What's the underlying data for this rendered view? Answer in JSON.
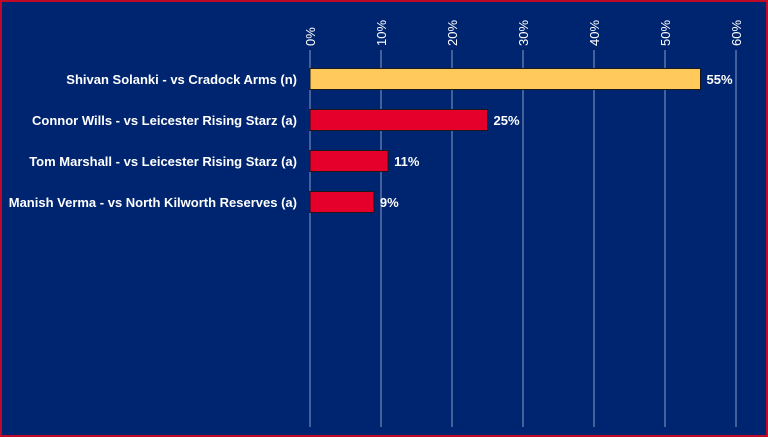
{
  "chart_data": {
    "type": "bar",
    "orientation": "horizontal",
    "categories": [
      "Shivan Solanki - vs Cradock Arms (n)",
      "Connor Wills - vs Leicester Rising Starz (a)",
      "Tom Marshall - vs Leicester Rising Starz (a)",
      "Manish Verma - vs North Kilworth Reserves (a)"
    ],
    "values": [
      55,
      25,
      11,
      9
    ],
    "data_labels": [
      "55%",
      "25%",
      "11%",
      "9%"
    ],
    "xlim": [
      0,
      60
    ],
    "x_ticks": [
      0,
      10,
      20,
      30,
      40,
      50,
      60
    ],
    "x_tick_labels": [
      "0%",
      "10%",
      "20%",
      "30%",
      "40%",
      "50%",
      "60%"
    ],
    "x_axis_position": "top",
    "grid": true,
    "bar_colors": [
      "#ffc95c",
      "#e4002b",
      "#e4002b",
      "#e4002b"
    ],
    "background_color": "#002570",
    "border_color": "#c00a2a"
  }
}
